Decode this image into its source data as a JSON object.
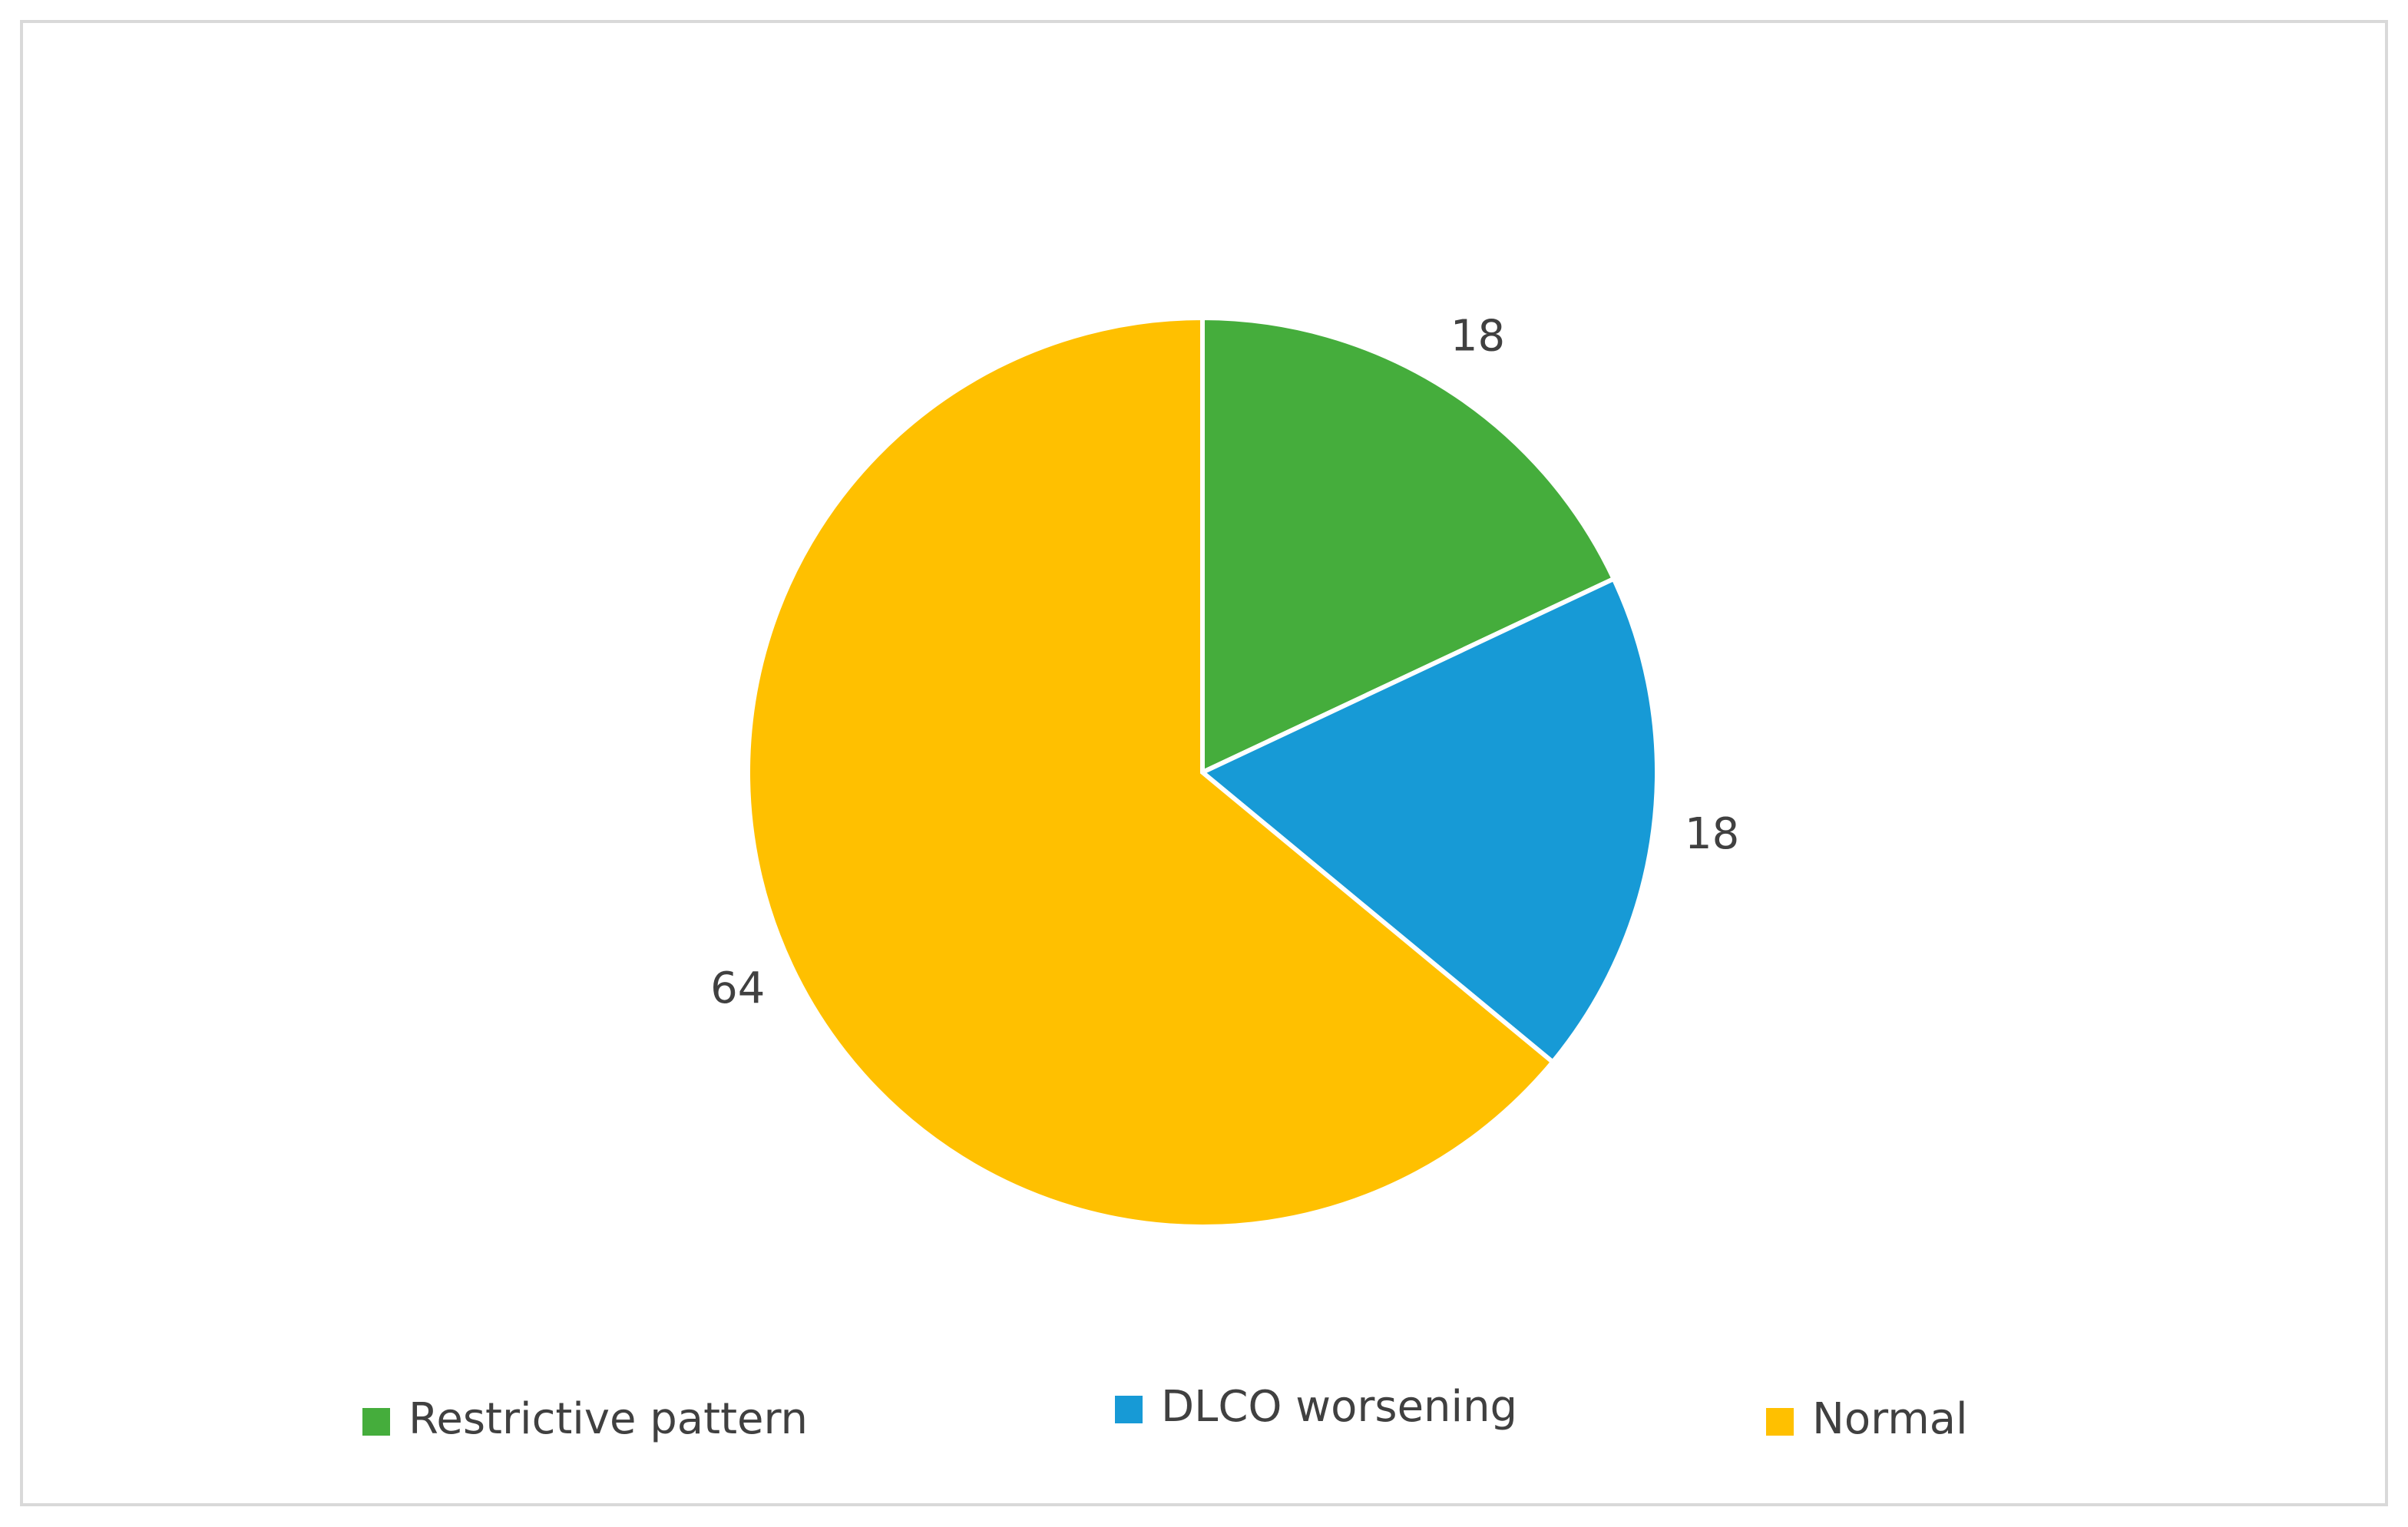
{
  "chart_data": {
    "type": "pie",
    "categories": [
      "Restrictive pattern",
      "DLCO worsening",
      "Normal"
    ],
    "values": [
      18,
      18,
      64
    ],
    "colors": [
      "#45ad3c",
      "#179ad6",
      "#ffc000"
    ],
    "legend": "bottom"
  }
}
